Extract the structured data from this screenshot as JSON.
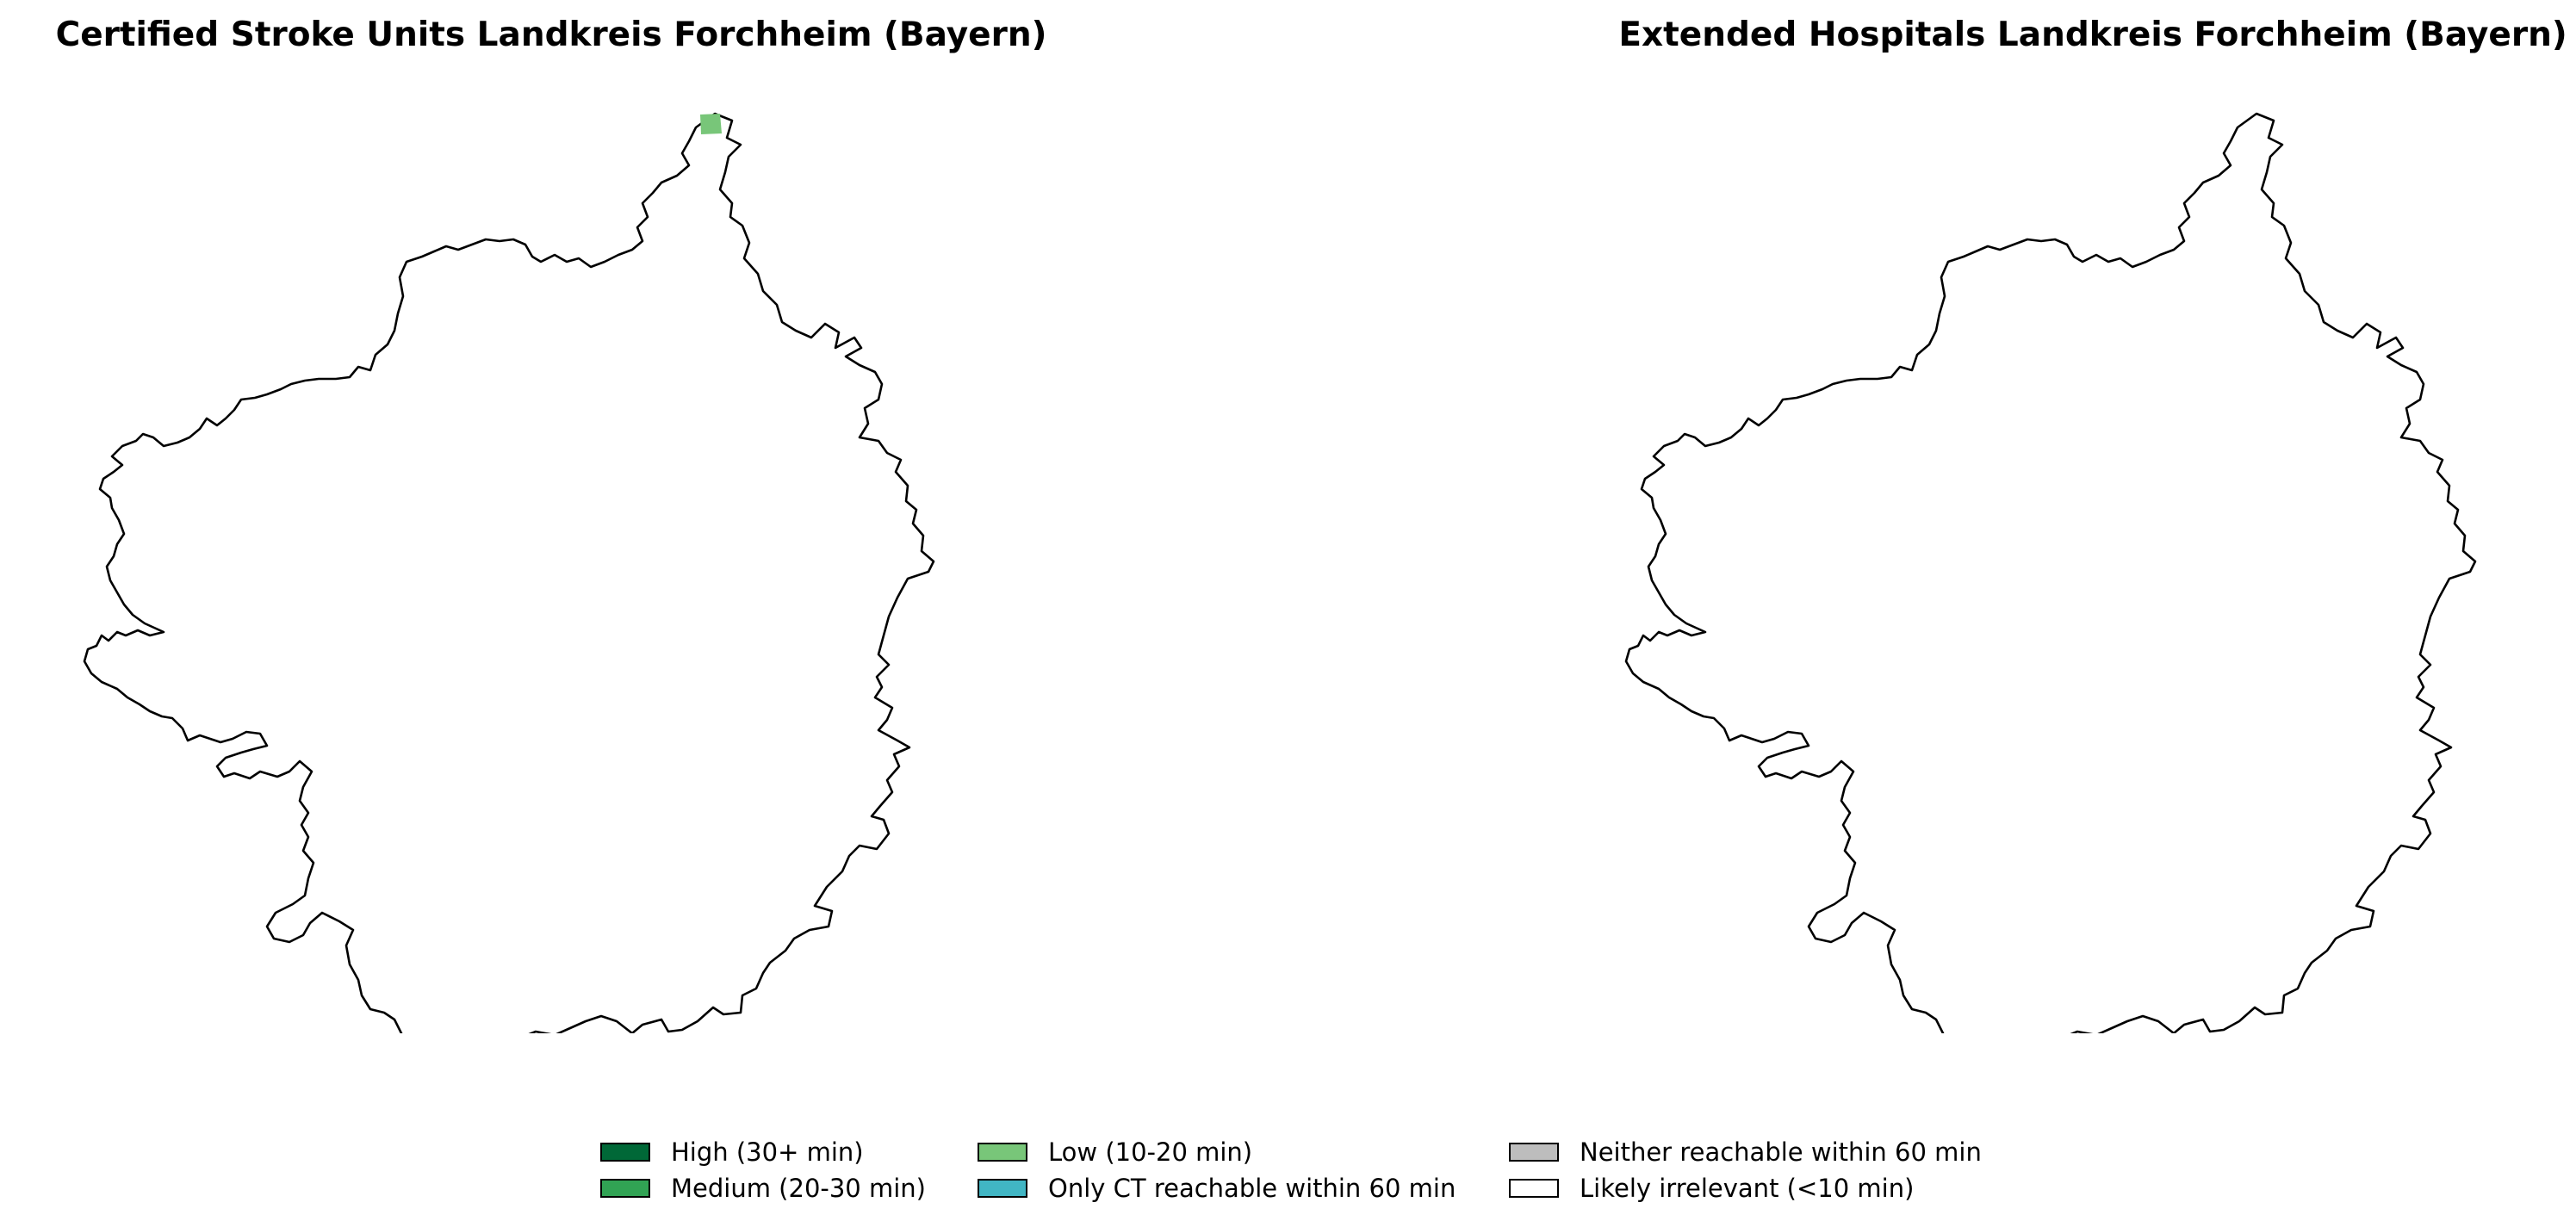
{
  "colors": {
    "high": "#006837",
    "medium": "#31a354",
    "low": "#78c679",
    "ct_only": "#41b6c4",
    "neither": "#bdbdbd",
    "irrelevant": "#ffffff",
    "outline": "#000000"
  },
  "maps": [
    {
      "title": "Certified Stroke Units Landkreis Forchheim (Bayern)",
      "highlighted_region_category": "low"
    },
    {
      "title": "Extended Hospitals Landkreis Forchheim (Bayern)",
      "highlighted_region_category": ""
    }
  ],
  "legend": [
    {
      "key": "high",
      "label": "High (30+ min)"
    },
    {
      "key": "medium",
      "label": "Medium (20-30 min)"
    },
    {
      "key": "low",
      "label": "Low (10-20 min)"
    },
    {
      "key": "ct_only",
      "label": "Only CT reachable within 60 min"
    },
    {
      "key": "neither",
      "label": "Neither reachable within 60 min"
    },
    {
      "key": "irrelevant",
      "label": "Likely irrelevant (<10 min)"
    }
  ]
}
